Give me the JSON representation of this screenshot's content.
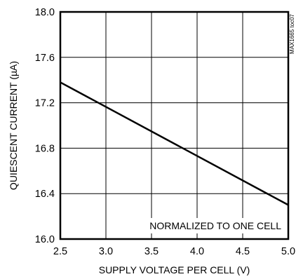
{
  "chart_data": {
    "type": "line",
    "title": "",
    "xlabel": "SUPPLY VOLTAGE PER CELL (V)",
    "ylabel": "QUIESCENT CURRENT (µA)",
    "xlim": [
      2.5,
      5.0
    ],
    "ylim": [
      16.0,
      18.0
    ],
    "x_ticks": [
      2.5,
      3.0,
      3.5,
      4.0,
      4.5,
      5.0
    ],
    "x_tick_labels": [
      "2.5",
      "3.0",
      "3.5",
      "4.0",
      "4.5",
      "5.0"
    ],
    "y_ticks": [
      16.0,
      16.4,
      16.8,
      17.2,
      17.6,
      18.0
    ],
    "y_tick_labels": [
      "16.0",
      "16.4",
      "16.8",
      "17.2",
      "17.6",
      "18.0"
    ],
    "grid": true,
    "series": [
      {
        "x": [
          2.5,
          5.0
        ],
        "y": [
          17.38,
          16.3
        ]
      }
    ],
    "annotation": "NORMALIZED TO ONE CELL",
    "reference_code": "MAX1665 toc07",
    "colors": {
      "line": "#000000",
      "grid": "#000000",
      "frame": "#000000",
      "background": "#ffffff"
    }
  }
}
